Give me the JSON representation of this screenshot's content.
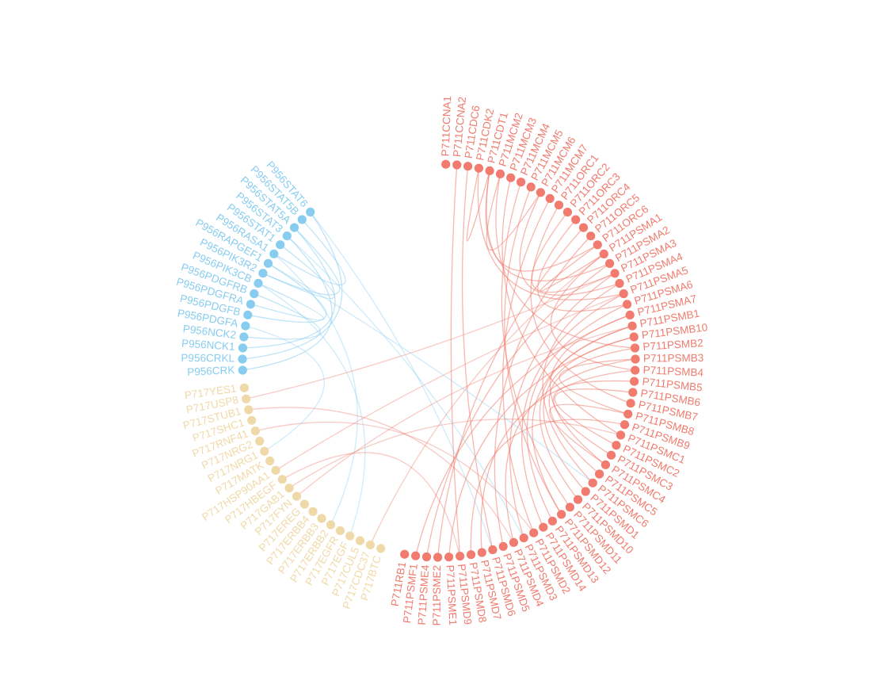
{
  "groups": [
    {
      "name": "P711",
      "color": "#f07b6e",
      "nodes": [
        "P711CCNA1",
        "P711CCNA2",
        "P711CDC6",
        "P711CDK2",
        "P711CDT1",
        "P711MCM2",
        "P711MCM3",
        "P711MCM4",
        "P711MCM5",
        "P711MCM6",
        "P711MCM7",
        "P711ORC1",
        "P711ORC2",
        "P711ORC3",
        "P711ORC4",
        "P711ORC5",
        "P711ORC6",
        "P711PSMA1",
        "P711PSMA2",
        "P711PSMA3",
        "P711PSMA4",
        "P711PSMA5",
        "P711PSMA6",
        "P711PSMA7",
        "P711PSMB1",
        "P711PSMB10",
        "P711PSMB2",
        "P711PSMB3",
        "P711PSMB4",
        "P711PSMB5",
        "P711PSMB6",
        "P711PSMB7",
        "P711PSMB8",
        "P711PSMB9",
        "P711PSMC1",
        "P711PSMC2",
        "P711PSMC3",
        "P711PSMC4",
        "P711PSMC5",
        "P711PSMC6",
        "P711PSMD1",
        "P711PSMD10",
        "P711PSMD11",
        "P711PSMD12",
        "P711PSMD13",
        "P711PSMD14",
        "P711PSMD2",
        "P711PSMD3",
        "P711PSMD4",
        "P711PSMD5",
        "P711PSMD6",
        "P711PSMD7",
        "P711PSMD8",
        "P711PSMD9",
        "P711PSME1",
        "P711PSME2",
        "P711PSME4",
        "P711PSMF1",
        "P711RB1"
      ]
    },
    {
      "name": "P717",
      "color": "#f0d9a8",
      "nodes": [
        "P717BTC",
        "P717CDC37",
        "P717CUL5",
        "P717EGF",
        "P717EGFR",
        "P717ERBB2",
        "P717ERBB3",
        "P717ERBB4",
        "P717EREG",
        "P717FYN",
        "P717GAB1",
        "P717HBEGF",
        "P717HSP90AA1",
        "P717MATK",
        "P717NRG1",
        "P717NRG2",
        "P717RNF41",
        "P717SHC1",
        "P717STUB1",
        "P717USP8",
        "P717YES1"
      ]
    },
    {
      "name": "P956",
      "color": "#88cdf0",
      "nodes": [
        "P956CRK",
        "P956CRKL",
        "P956NCK1",
        "P956NCK2",
        "P956PDGFA",
        "P956PDGFB",
        "P956PDGFRA",
        "P956PDGFRB",
        "P956PIK3CB",
        "P956PIK3R2",
        "P956RAPGEF1",
        "P956RASA1",
        "P956STAT1",
        "P956STAT3",
        "P956STAT5A",
        "P956STAT5B",
        "P956STAT6"
      ]
    }
  ],
  "links": [
    [
      "P711CDK2",
      "P711PSMA5"
    ],
    [
      "P711CDT1",
      "P711PSMA2"
    ],
    [
      "P711CDC6",
      "P711PSMD6"
    ],
    [
      "P711MCM2",
      "P711PSMB2"
    ],
    [
      "P711MCM3",
      "P711PSMC1"
    ],
    [
      "P711MCM4",
      "P711PSMD11"
    ],
    [
      "P711MCM5",
      "P711PSMD12"
    ],
    [
      "P711MCM6",
      "P711PSMA4"
    ],
    [
      "P711MCM7",
      "P711PSMD2"
    ],
    [
      "P711ORC1",
      "P711PSMB7"
    ],
    [
      "P711ORC2",
      "P711PSMA3"
    ],
    [
      "P711ORC3",
      "P711PSMA6"
    ],
    [
      "P711ORC4",
      "P711PSME2"
    ],
    [
      "P711ORC5",
      "P711PSMD5"
    ],
    [
      "P711ORC6",
      "P711PSMA1"
    ],
    [
      "P711CDK2",
      "P711CDT1"
    ],
    [
      "P711CCNA2",
      "P711PSMD9"
    ],
    [
      "P711PSMA1",
      "P711PSMB4"
    ],
    [
      "P711PSMA2",
      "P711PSME4"
    ],
    [
      "P711PSMA3",
      "P711PSMD3"
    ],
    [
      "P711PSMA4",
      "P711PSMC6"
    ],
    [
      "P711PSMA5",
      "P711PSMD14"
    ],
    [
      "P711PSMA6",
      "P711PSMD13"
    ],
    [
      "P711PSMA7",
      "P711PSMF1"
    ],
    [
      "P711PSMB1",
      "P711PSMD10"
    ],
    [
      "P711PSMB10",
      "P711PSMD1"
    ],
    [
      "P711PSMB2",
      "P711PSMC5"
    ],
    [
      "P711PSMB3",
      "P711PSMD4"
    ],
    [
      "P711PSMB4",
      "P711PSMD7"
    ],
    [
      "P711PSMB5",
      "P711PSMC3"
    ],
    [
      "P711PSMB6",
      "P711PSMC2"
    ],
    [
      "P711PSMB8",
      "P711PSMC4"
    ],
    [
      "P711PSMB9",
      "P711PSMD8"
    ],
    [
      "P711PSMB10",
      "P711PSME1"
    ],
    [
      "P711PSMA7",
      "P711PSMC4"
    ],
    [
      "P711PSMB1",
      "P711PSMD12"
    ],
    [
      "P711PSMB3",
      "P711PSMB8"
    ],
    [
      "P711CDT1",
      "P711ORC6"
    ],
    [
      "P711MCM2",
      "P711MCM6"
    ],
    [
      "P711PSMA1",
      "P717CDC37"
    ],
    [
      "P711PSMA3",
      "P717USP8"
    ],
    [
      "P711PSMA5",
      "P717HSP90AA1"
    ],
    [
      "P711PSMB1",
      "P717FYN"
    ],
    [
      "P711PSMD2",
      "P717RNF41"
    ],
    [
      "P711PSMD4",
      "P717STUB1"
    ],
    [
      "P711PSMD9",
      "P717HBEGF"
    ],
    [
      "P711PSMC1",
      "P717GAB1"
    ],
    [
      "P956CRK",
      "P956STAT3"
    ],
    [
      "P956CRKL",
      "P956STAT6"
    ],
    [
      "P956NCK1",
      "P956STAT5A"
    ],
    [
      "P956PDGFB",
      "P956RAPGEF1"
    ],
    [
      "P956PIK3R2",
      "P956STAT1"
    ],
    [
      "P956NCK2",
      "P956PDGFRB"
    ],
    [
      "P956RASA1",
      "P956STAT5B"
    ],
    [
      "P956PDGFRA",
      "P956PIK3CB"
    ],
    [
      "P956STAT5A",
      "P956PIK3R2"
    ],
    [
      "P956RAPGEF1",
      "P711PSMC6"
    ],
    [
      "P956STAT3",
      "P711PSMD3"
    ],
    [
      "P956PIK3CB",
      "P717EGF"
    ],
    [
      "P956PDGFA",
      "P717NRG1"
    ],
    [
      "P956STAT6",
      "P711PSMD6"
    ],
    [
      "P956RASA1",
      "P717ERBB2"
    ]
  ]
}
